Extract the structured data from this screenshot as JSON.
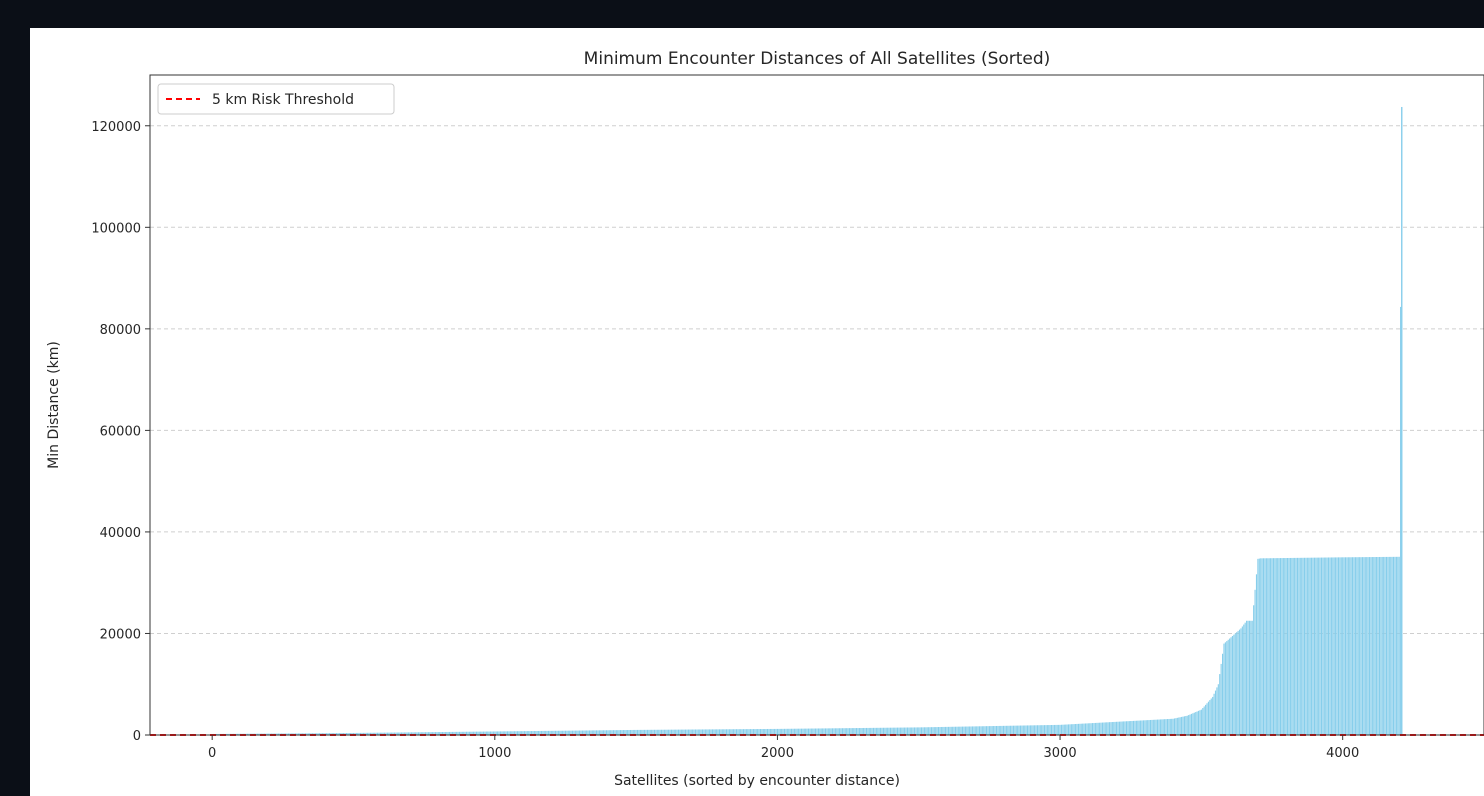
{
  "chart_data": {
    "type": "bar",
    "title": "Minimum Encounter Distances of All Satellites (Sorted)",
    "xlabel": "Satellites (sorted by encounter distance)",
    "ylabel": "Min Distance (km)",
    "xlim": [
      -220,
      4500
    ],
    "ylim": [
      0,
      130000
    ],
    "xticks": [
      0,
      1000,
      2000,
      3000,
      4000
    ],
    "yticks": [
      0,
      20000,
      40000,
      60000,
      80000,
      100000,
      120000
    ],
    "xtick_labels": [
      "0",
      "1000",
      "2000",
      "3000",
      "4000"
    ],
    "ytick_labels": [
      "0",
      "20000",
      "40000",
      "60000",
      "80000",
      "100000",
      "120000"
    ],
    "grid": "y-dashed",
    "bar_color": "#87ceeb",
    "n_satellites": 4210,
    "x": [
      0,
      500,
      1000,
      1500,
      2000,
      2500,
      3000,
      3300,
      3400,
      3450,
      3500,
      3540,
      3560,
      3580,
      3600,
      3640,
      3660,
      3680,
      3700,
      3710,
      4000,
      4200,
      4209
    ],
    "values": [
      200,
      400,
      700,
      1000,
      1200,
      1500,
      2000,
      2900,
      3200,
      3800,
      5000,
      7500,
      10000,
      18000,
      19000,
      21000,
      22500,
      22500,
      34700,
      34800,
      35000,
      35100,
      123700
    ],
    "threshold": {
      "value": 5,
      "label": "5 km Risk Threshold",
      "color": "#ff0000",
      "style": "dashed"
    },
    "legend": {
      "location": "top-left",
      "entries": [
        "5 km Risk Threshold"
      ]
    }
  }
}
